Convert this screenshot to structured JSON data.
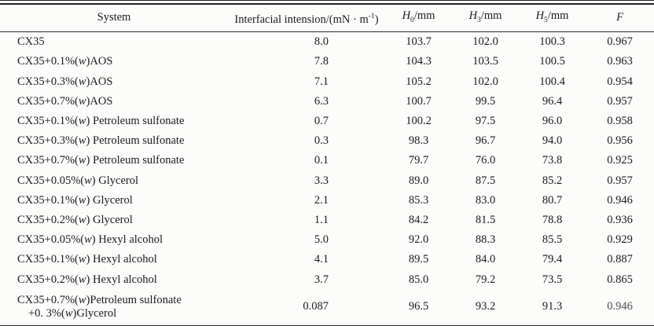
{
  "colors": {
    "text": "#1a1a1a",
    "rule": "#242424",
    "background": "#fcfcfb"
  },
  "table": {
    "header": [
      {
        "text": "System"
      },
      {
        "text": "Interfacial intension/(mN · m",
        "sup": "-1",
        "after": ")"
      },
      {
        "italic": "H",
        "sub": "0",
        "after": "/mm"
      },
      {
        "italic": "H",
        "sub": "3",
        "after": "/mm"
      },
      {
        "italic": "H",
        "sub": "5",
        "after": "/mm"
      },
      {
        "italic": "F"
      }
    ],
    "rows": [
      {
        "system": "CX35",
        "values": [
          "8.0",
          "103.7",
          "102.0",
          "100.3",
          "0.967"
        ]
      },
      {
        "system": "CX35+0.1%(w)AOS",
        "values": [
          "7.8",
          "104.3",
          "103.5",
          "100.5",
          "0.963"
        ]
      },
      {
        "system": "CX35+0.3%(w)AOS",
        "values": [
          "7.1",
          "105.2",
          "102.0",
          "100.4",
          "0.954"
        ]
      },
      {
        "system": "CX35+0.7%(w)AOS",
        "values": [
          "6.3",
          "100.7",
          "99.5",
          "96.4",
          "0.957"
        ]
      },
      {
        "system": "CX35+0.1%(w) Petroleum sulfonate",
        "values": [
          "0.7",
          "100.2",
          "97.5",
          "96.0",
          "0.958"
        ]
      },
      {
        "system": "CX35+0.3%(w) Petroleum sulfonate",
        "values": [
          "0.3",
          "98.3",
          "96.7",
          "94.0",
          "0.956"
        ]
      },
      {
        "system": "CX35+0.7%(w) Petroleum sulfonate",
        "values": [
          "0.1",
          "79.7",
          "76.0",
          "73.8",
          "0.925"
        ]
      },
      {
        "system": "CX35+0.05%(w) Glycerol",
        "values": [
          "3.3",
          "89.0",
          "87.5",
          "85.2",
          "0.957"
        ]
      },
      {
        "system": "CX35+0.1%(w) Glycerol",
        "values": [
          "2.1",
          "85.3",
          "83.0",
          "80.7",
          "0.946"
        ]
      },
      {
        "system": "CX35+0.2%(w) Glycerol",
        "values": [
          "1.1",
          "84.2",
          "81.5",
          "78.8",
          "0.936"
        ]
      },
      {
        "system": "CX35+0.05%(w) Hexyl alcohol",
        "values": [
          "5.0",
          "92.0",
          "88.3",
          "85.5",
          "0.929"
        ]
      },
      {
        "system": "CX35+0.1%(w) Hexyl alcohol",
        "values": [
          "4.1",
          "89.5",
          "84.0",
          "79.4",
          "0.887"
        ]
      },
      {
        "system": "CX35+0.2%(w) Hexyl alcohol",
        "values": [
          "3.7",
          "85.0",
          "79.2",
          "73.5",
          "0.865"
        ]
      },
      {
        "system_lines": [
          "CX35+0.7%(w)Petroleum sulfonate",
          "+0. 3%(w)Glycerol"
        ],
        "values": [
          "0.087",
          "96.5",
          "93.2",
          "91.3",
          "0.946"
        ],
        "smudged_f": true
      }
    ]
  }
}
